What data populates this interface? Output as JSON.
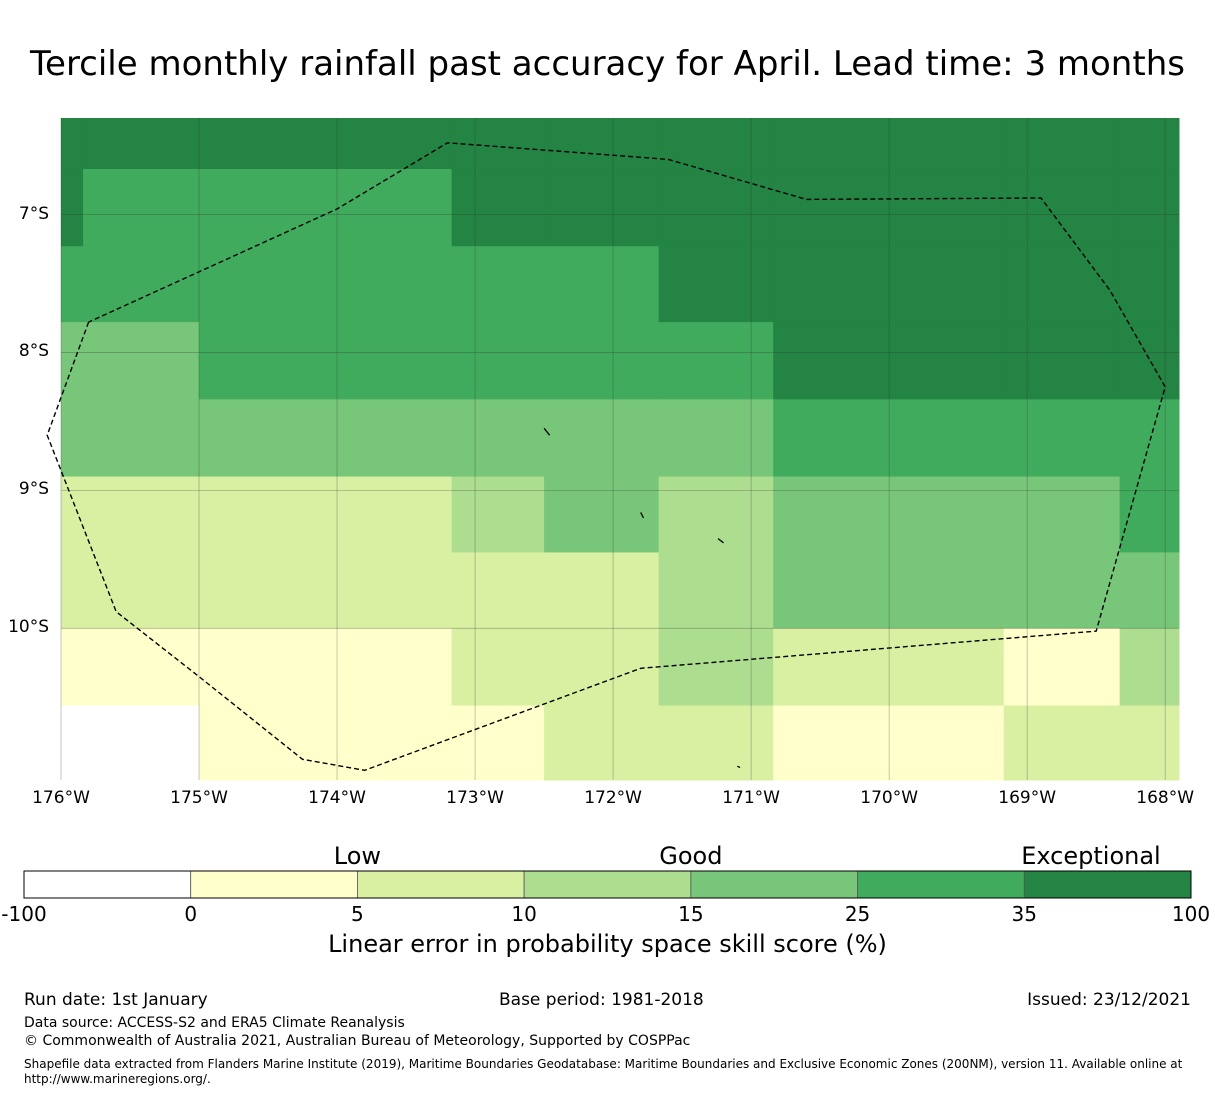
{
  "title": "Tercile monthly rainfall past accuracy for April. Lead time: 3 months",
  "map": {
    "lon_range": [
      -176,
      -167.9
    ],
    "lat_range": [
      -11.1,
      -6.3
    ],
    "lon_ticks": [
      {
        "value": -176,
        "label": "176°W"
      },
      {
        "value": -175,
        "label": "175°W"
      },
      {
        "value": -174,
        "label": "174°W"
      },
      {
        "value": -173,
        "label": "173°W"
      },
      {
        "value": -172,
        "label": "172°W"
      },
      {
        "value": -171,
        "label": "171°W"
      },
      {
        "value": -170,
        "label": "170°W"
      },
      {
        "value": -169,
        "label": "169°W"
      },
      {
        "value": -168,
        "label": "168°W"
      }
    ],
    "lat_ticks": [
      {
        "value": -7,
        "label": "7°S"
      },
      {
        "value": -8,
        "label": "8°S"
      },
      {
        "value": -9,
        "label": "9°S"
      },
      {
        "value": -10,
        "label": "10°S"
      }
    ],
    "category_colors": [
      "#ffffff",
      "#ffffcc",
      "#d9f0a3",
      "#addd8e",
      "#78c679",
      "#41ab5d",
      "#238443"
    ],
    "grid_columns": [
      -176,
      -175.84,
      -175.0,
      -173.17,
      -172.5,
      -171.67,
      -170.84,
      -169.17,
      -168.33,
      -167.9
    ],
    "grid_rows": [
      -6.3,
      -6.67,
      -7.23,
      -7.78,
      -8.34,
      -8.9,
      -9.45,
      -10.0,
      -10.56,
      -11.1
    ],
    "grid_categories": [
      [
        6,
        6,
        6,
        6,
        6,
        6,
        6,
        6,
        6
      ],
      [
        6,
        5,
        5,
        6,
        6,
        6,
        6,
        6,
        6
      ],
      [
        5,
        5,
        5,
        5,
        5,
        6,
        6,
        6,
        6
      ],
      [
        4,
        4,
        5,
        5,
        5,
        5,
        6,
        6,
        6
      ],
      [
        4,
        4,
        4,
        4,
        4,
        4,
        5,
        5,
        5
      ],
      [
        2,
        2,
        2,
        3,
        4,
        3,
        4,
        4,
        5
      ],
      [
        2,
        2,
        2,
        2,
        2,
        3,
        4,
        4,
        4
      ],
      [
        1,
        1,
        1,
        2,
        2,
        3,
        2,
        1,
        3
      ],
      [
        0,
        0,
        1,
        1,
        2,
        2,
        1,
        2,
        2
      ]
    ],
    "eez_boundary": [
      [
        -175.8,
        -7.78
      ],
      [
        -176.1,
        -8.6
      ],
      [
        -175.6,
        -9.88
      ],
      [
        -175.0,
        -10.35
      ],
      [
        -174.25,
        -10.95
      ],
      [
        -173.8,
        -11.03
      ],
      [
        -171.8,
        -10.29
      ],
      [
        -168.5,
        -10.02
      ],
      [
        -168.0,
        -8.25
      ],
      [
        -168.4,
        -7.55
      ],
      [
        -168.9,
        -6.88
      ],
      [
        -170.6,
        -6.89
      ],
      [
        -171.6,
        -6.6
      ],
      [
        -173.2,
        -6.48
      ],
      [
        -174.0,
        -6.96
      ],
      [
        -175.8,
        -7.78
      ]
    ],
    "islands": [
      [
        [
          -172.5,
          -8.55
        ],
        [
          -172.46,
          -8.6
        ]
      ],
      [
        [
          -171.8,
          -9.16
        ],
        [
          -171.78,
          -9.2
        ]
      ],
      [
        [
          -171.24,
          -9.35
        ],
        [
          -171.2,
          -9.38
        ]
      ],
      [
        [
          -171.1,
          -11.0
        ],
        [
          -171.08,
          -11.01
        ]
      ]
    ]
  },
  "colorbar": {
    "category_labels": [
      {
        "label": "Low",
        "at": 2
      },
      {
        "label": "Good",
        "at": 4
      },
      {
        "label": "Exceptional",
        "at": 6.4
      }
    ],
    "ticks": [
      "-100",
      "0",
      "5",
      "10",
      "15",
      "25",
      "35",
      "100"
    ],
    "axis_title": "Linear error in probability space skill score (%)"
  },
  "footer": {
    "run_date": "Run date: 1st January",
    "base_period": "Base period: 1981-2018",
    "issued": "Issued: 23/12/2021",
    "data_source": "Data source: ACCESS-S2 and ERA5 Climate Reanalysis",
    "copyright": "© Commonwealth of Australia 2021, Australian Bureau of Meteorology, Supported by COSPPac",
    "shapefile": "Shapefile data extracted from Flanders Marine Institute (2019), Maritime Boundaries Geodatabase: Maritime Boundaries and Exclusive Economic Zones (200NM), version 11. Available online at http://www.marineregions.org/."
  }
}
